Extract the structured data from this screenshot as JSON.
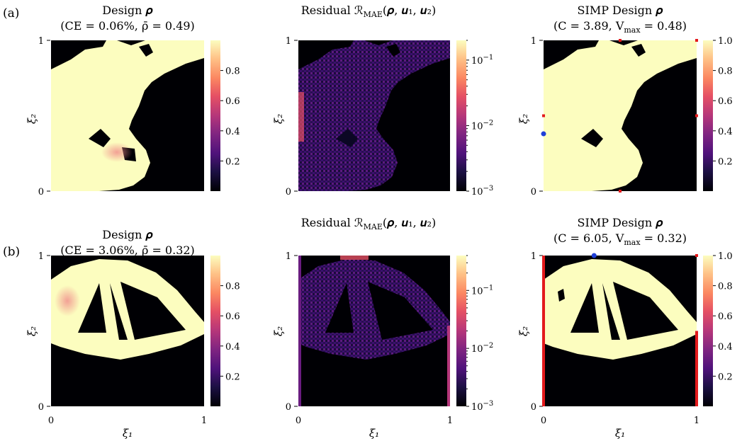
{
  "figure": {
    "row_labels": [
      "(a)",
      "(b)"
    ],
    "xi1": "ξ₁",
    "xi2": "ξ₂"
  },
  "chart_data": [
    {
      "type": "heatmap",
      "row": "a",
      "col": 0,
      "title_line1": "Design 𝝆",
      "title_line2": "(CE = 0.06%, ρ̄ = 0.49)",
      "xlim": [
        0,
        1
      ],
      "ylim": [
        0,
        1
      ],
      "x_ticks": [
        "",
        ""
      ],
      "y_ticks": [
        "0",
        "1"
      ],
      "ylabel": "ξ₂",
      "xlabel": "",
      "colorbar": {
        "scale": "linear",
        "range": [
          0.0,
          1.0
        ],
        "ticks": [
          "0.2",
          "0.4",
          "0.6",
          "0.8"
        ]
      },
      "colormap": "magma",
      "mean_density": 0.49,
      "ce_percent": 0.06
    },
    {
      "type": "heatmap",
      "row": "a",
      "col": 1,
      "title_line1": "Residual ℛ",
      "title_sub": "MAE",
      "title_rest": "(𝝆, 𝒖₁, 𝒖₂)",
      "xlim": [
        0,
        1
      ],
      "ylim": [
        0,
        1
      ],
      "x_ticks": [
        "",
        ""
      ],
      "y_ticks": [
        "0",
        "1"
      ],
      "ylabel": "ξ₂",
      "xlabel": "",
      "colorbar": {
        "scale": "log",
        "range": [
          0.001,
          0.2
        ],
        "ticks_base": "10",
        "ticks_exp": [
          "−1",
          "−2",
          "−3"
        ]
      },
      "colormap": "magma"
    },
    {
      "type": "heatmap",
      "row": "a",
      "col": 2,
      "title_line1": "SIMP Design 𝝆",
      "title_line2_a": "(C = 3.89, V",
      "title_line2_sub": "max",
      "title_line2_b": " = 0.48)",
      "xlim": [
        0,
        1
      ],
      "ylim": [
        0,
        1
      ],
      "x_ticks": [
        "",
        ""
      ],
      "y_ticks": [
        "0",
        "1"
      ],
      "ylabel": "ξ₂",
      "xlabel": "",
      "colorbar": {
        "scale": "linear",
        "range": [
          0.0,
          1.0
        ],
        "ticks": [
          "0.2",
          "0.4",
          "0.6",
          "0.8",
          "1.0"
        ]
      },
      "colormap": "magma",
      "compliance": 3.89,
      "vmax": 0.48,
      "markers": {
        "fixed_points": [
          [
            0.5,
            1.0
          ],
          [
            1.0,
            1.0
          ],
          [
            0.0,
            0.5
          ],
          [
            1.0,
            0.5
          ],
          [
            0.5,
            0.0
          ]
        ],
        "load_points": [
          [
            0.0,
            0.38
          ]
        ]
      },
      "colors": {
        "support": "#e31a1c",
        "load": "#1f3fd8"
      }
    },
    {
      "type": "heatmap",
      "row": "b",
      "col": 0,
      "title_line1": "Design 𝝆",
      "title_line2": "(CE = 3.06%, ρ̄ = 0.32)",
      "xlim": [
        0,
        1
      ],
      "ylim": [
        0,
        1
      ],
      "x_ticks": [
        "0",
        "1"
      ],
      "y_ticks": [
        "0",
        "1"
      ],
      "ylabel": "ξ₂",
      "xlabel": "ξ₁",
      "colorbar": {
        "scale": "linear",
        "range": [
          0.0,
          1.0
        ],
        "ticks": [
          "0.2",
          "0.4",
          "0.6",
          "0.8"
        ]
      },
      "colormap": "magma",
      "mean_density": 0.32,
      "ce_percent": 3.06
    },
    {
      "type": "heatmap",
      "row": "b",
      "col": 1,
      "title_line1": "Residual ℛ",
      "title_sub": "MAE",
      "title_rest": "(𝝆, 𝒖₁, 𝒖₂)",
      "xlim": [
        0,
        1
      ],
      "ylim": [
        0,
        1
      ],
      "x_ticks": [
        "0",
        "1"
      ],
      "y_ticks": [
        "0",
        "1"
      ],
      "ylabel": "ξ₂",
      "xlabel": "ξ₁",
      "colorbar": {
        "scale": "log",
        "range": [
          0.001,
          0.4
        ],
        "ticks_base": "10",
        "ticks_exp": [
          "−1",
          "−2",
          "−3"
        ]
      },
      "colormap": "magma"
    },
    {
      "type": "heatmap",
      "row": "b",
      "col": 2,
      "title_line1": "SIMP Design 𝝆",
      "title_line2_a": "(C = 6.05, V",
      "title_line2_sub": "max",
      "title_line2_b": " = 0.32)",
      "xlim": [
        0,
        1
      ],
      "ylim": [
        0,
        1
      ],
      "x_ticks": [
        "0",
        "1"
      ],
      "y_ticks": [
        "0",
        "1"
      ],
      "ylabel": "ξ₂",
      "xlabel": "ξ₁",
      "colorbar": {
        "scale": "linear",
        "range": [
          0.0,
          1.0
        ],
        "ticks": [
          "0.2",
          "0.4",
          "0.6",
          "0.8",
          "1.0"
        ]
      },
      "colormap": "magma",
      "compliance": 6.05,
      "vmax": 0.32,
      "markers": {
        "fixed_points": [
          [
            1.0,
            1.0
          ]
        ],
        "fixed_edges": [
          {
            "x": 0.0,
            "y_from": 0.0,
            "y_to": 1.0
          },
          {
            "x": 1.0,
            "y_from": 0.0,
            "y_to": 0.5
          }
        ],
        "load_points": [
          [
            0.33,
            1.0
          ]
        ]
      },
      "colors": {
        "support": "#e31a1c",
        "load": "#1f3fd8"
      }
    }
  ]
}
